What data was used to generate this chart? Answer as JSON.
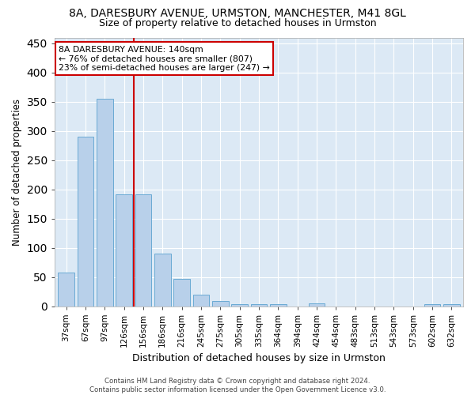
{
  "title1": "8A, DARESBURY AVENUE, URMSTON, MANCHESTER, M41 8GL",
  "title2": "Size of property relative to detached houses in Urmston",
  "xlabel": "Distribution of detached houses by size in Urmston",
  "ylabel": "Number of detached properties",
  "categories": [
    "37sqm",
    "67sqm",
    "97sqm",
    "126sqm",
    "156sqm",
    "186sqm",
    "216sqm",
    "245sqm",
    "275sqm",
    "305sqm",
    "335sqm",
    "364sqm",
    "394sqm",
    "424sqm",
    "454sqm",
    "483sqm",
    "513sqm",
    "543sqm",
    "573sqm",
    "602sqm",
    "632sqm"
  ],
  "values": [
    58,
    290,
    355,
    192,
    192,
    90,
    47,
    20,
    9,
    4,
    4,
    4,
    0,
    5,
    0,
    0,
    0,
    0,
    0,
    4,
    4
  ],
  "bar_color": "#b8d0ea",
  "bar_edge_color": "#6aaad4",
  "vline_color": "#cc0000",
  "annotation_text": "8A DARESBURY AVENUE: 140sqm\n← 76% of detached houses are smaller (807)\n23% of semi-detached houses are larger (247) →",
  "annotation_box_color": "#ffffff",
  "annotation_box_edge": "#cc0000",
  "footer": "Contains HM Land Registry data © Crown copyright and database right 2024.\nContains public sector information licensed under the Open Government Licence v3.0.",
  "ylim": [
    0,
    460
  ],
  "yticks": [
    0,
    50,
    100,
    150,
    200,
    250,
    300,
    350,
    400,
    450
  ],
  "plot_bg_color": "#dce9f5",
  "fig_bg_color": "#ffffff",
  "grid_color": "#ffffff",
  "title1_fontsize": 10,
  "title2_fontsize": 9,
  "xlabel_fontsize": 9,
  "ylabel_fontsize": 8.5
}
